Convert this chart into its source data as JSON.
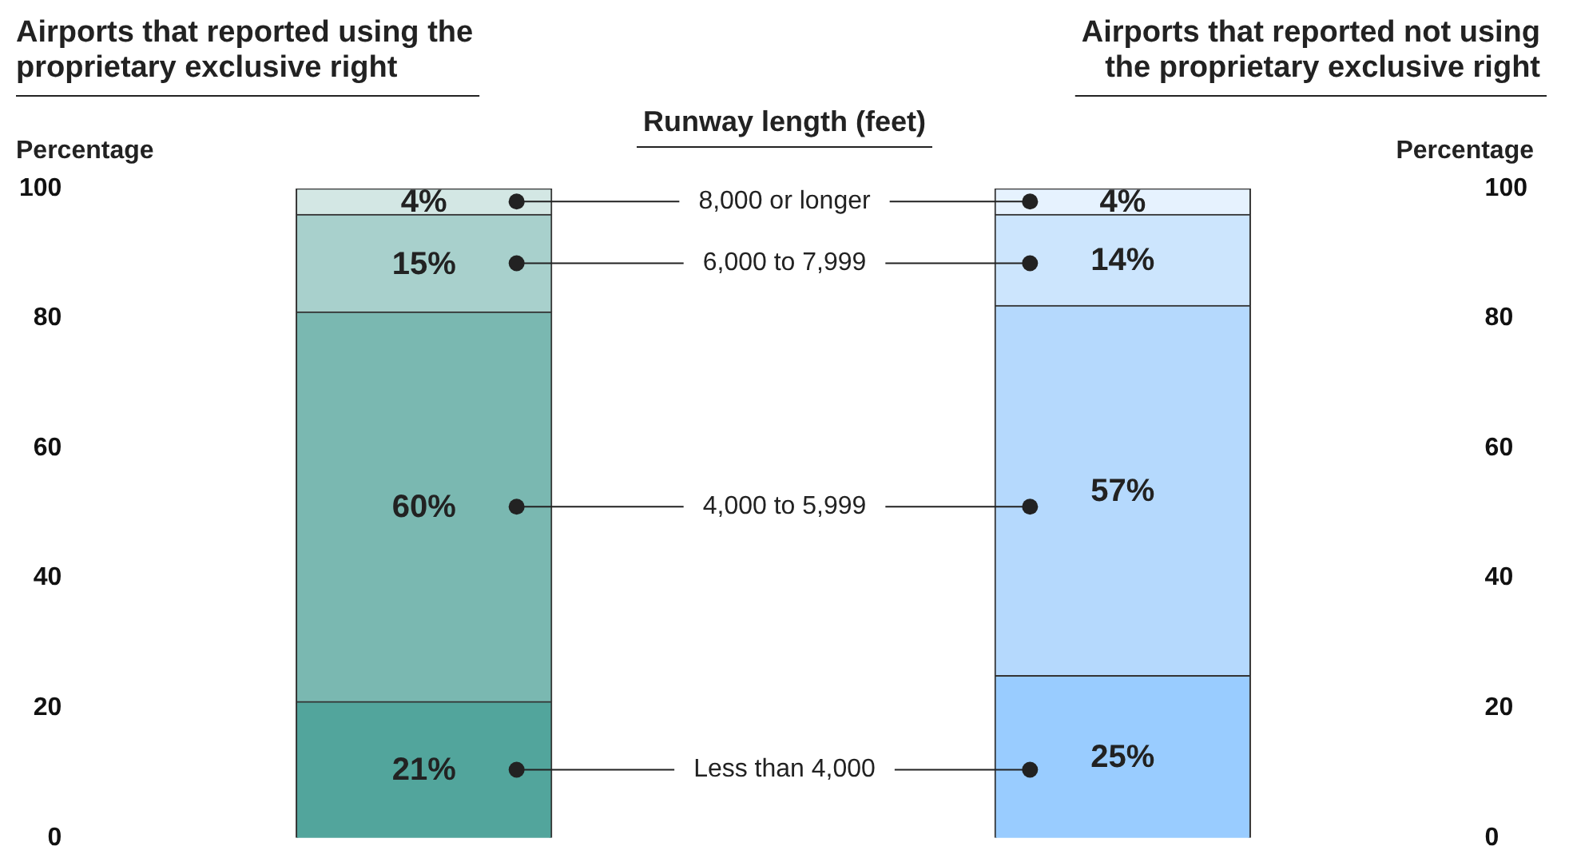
{
  "chart_data": {
    "type": "bar",
    "stacked": true,
    "categories": [
      "Airports that reported using the proprietary exclusive right",
      "Airports that reported not using the proprietary exclusive right"
    ],
    "legend_title": "Runway length (feet)",
    "ylabel": "Percentage",
    "y2label": "Percentage",
    "ylim": [
      0,
      100
    ],
    "yticks": [
      0,
      20,
      40,
      60,
      80,
      100
    ],
    "y2lim": [
      0,
      100
    ],
    "y2ticks": [
      0,
      20,
      40,
      60,
      80,
      100
    ],
    "grid": false,
    "series": [
      {
        "name": "Less than 4,000",
        "colors": [
          "#52a59c",
          "#99ccff"
        ],
        "values": [
          21,
          25
        ],
        "value_labels": [
          "21%",
          "25%"
        ]
      },
      {
        "name": "4,000 to 5,999",
        "colors": [
          "#7ab8b1",
          "#b5d9fd"
        ],
        "values": [
          60,
          57
        ],
        "value_labels": [
          "60%",
          "57%"
        ]
      },
      {
        "name": "6,000 to 7,999",
        "colors": [
          "#a8d0cc",
          "#cce5fd"
        ],
        "values": [
          15,
          14
        ],
        "value_labels": [
          "15%",
          "14%"
        ]
      },
      {
        "name": "8,000 or longer",
        "colors": [
          "#d3e7e4",
          "#e6f2fe"
        ],
        "values": [
          4,
          4
        ],
        "value_labels": [
          "4%",
          "4%"
        ]
      }
    ]
  }
}
